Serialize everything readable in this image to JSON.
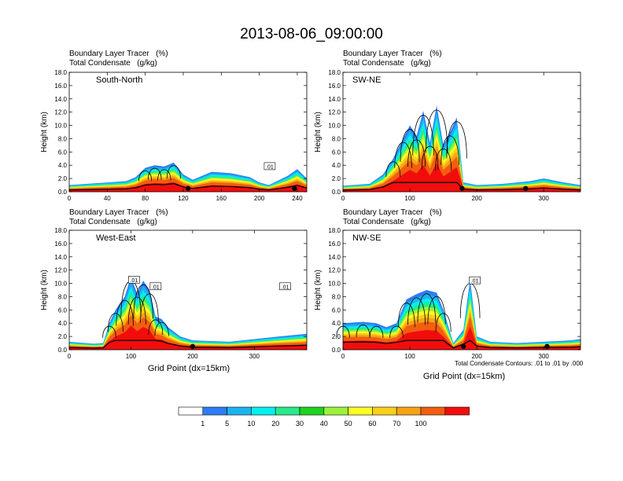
{
  "title": "2013-08-06_09:00:00",
  "panel_subtitle_left": "Boundary Layer Tracer",
  "panel_subtitle_left_unit": "(%)",
  "panel_subtitle_left2": "Total Condensate",
  "panel_subtitle_left2_unit": "(g/kg)",
  "x_label": "Grid Point (dx=15km)",
  "y_label": "Height (km)",
  "contour_note": "Total Condensate Contours: .01 to .01 by .000",
  "contour_label": ".01",
  "colors": {
    "levels": [
      "#ffffff",
      "#2e7df6",
      "#1ab4f0",
      "#00f0f0",
      "#27ea8c",
      "#20d31f",
      "#9af33a",
      "#fdfc25",
      "#f9cf1b",
      "#f7a314",
      "#f25d10",
      "#f20d0d"
    ],
    "contour": "#000000"
  },
  "colorbar_labels": [
    "1",
    "5",
    "10",
    "20",
    "30",
    "40",
    "50",
    "60",
    "70",
    "100"
  ],
  "chart_data": [
    {
      "type": "heatmap",
      "name": "South-North",
      "title": "South-North",
      "xlabel": "",
      "ylabel": "Height (km)",
      "xlim": [
        0,
        250
      ],
      "ylim": [
        0,
        18
      ],
      "xticks": [
        0,
        40,
        80,
        120,
        160,
        200,
        240
      ],
      "yticks": [
        0.0,
        2.0,
        4.0,
        6.0,
        8.0,
        10.0,
        12.0,
        14.0,
        16.0,
        18.0
      ],
      "contour_labels": [
        {
          "x": 211,
          "y": 3.8,
          "text": ".01"
        }
      ],
      "tracer_profile_x": [
        0,
        30,
        60,
        70,
        80,
        90,
        100,
        110,
        120,
        130,
        150,
        170,
        190,
        200,
        210,
        230,
        240,
        250
      ],
      "tracer_profile_top_km": [
        1.0,
        1.3,
        1.6,
        2.2,
        3.6,
        4.0,
        3.8,
        4.4,
        2.6,
        1.8,
        3.0,
        2.8,
        2.2,
        1.4,
        1.0,
        2.4,
        3.4,
        2.0
      ],
      "marker_x": [
        125,
        237
      ]
    },
    {
      "type": "heatmap",
      "name": "SW-NE",
      "title": "SW-NE",
      "xlabel": "",
      "ylabel": "Height (km)",
      "xlim": [
        0,
        355
      ],
      "ylim": [
        0,
        18
      ],
      "xticks": [
        0,
        100,
        200,
        300
      ],
      "yticks": [
        0.0,
        2.0,
        4.0,
        6.0,
        8.0,
        10.0,
        12.0,
        14.0,
        16.0,
        18.0
      ],
      "contour_labels": [],
      "tracer_profile_x": [
        0,
        40,
        60,
        75,
        90,
        100,
        110,
        120,
        130,
        140,
        150,
        160,
        170,
        180,
        200,
        240,
        280,
        300,
        330,
        355
      ],
      "tracer_profile_top_km": [
        0.9,
        1.2,
        2.6,
        5.0,
        8.0,
        10.0,
        8.4,
        12.2,
        7.4,
        13.0,
        7.0,
        9.0,
        11.2,
        1.4,
        1.0,
        1.2,
        1.6,
        2.0,
        1.4,
        1.0
      ],
      "marker_x": [
        178,
        273
      ]
    },
    {
      "type": "heatmap",
      "name": "West-East",
      "title": "West-East",
      "xlabel": "Grid Point (dx=15km)",
      "ylabel": "Height (km)",
      "xlim": [
        0,
        385
      ],
      "ylim": [
        0,
        18
      ],
      "xticks": [
        0,
        100,
        200,
        300
      ],
      "yticks": [
        0.0,
        2.0,
        4.0,
        6.0,
        8.0,
        10.0,
        12.0,
        14.0,
        16.0,
        18.0
      ],
      "contour_labels": [
        {
          "x": 105,
          "y": 10.5,
          "text": ".01"
        },
        {
          "x": 140,
          "y": 9.5,
          "text": ".01"
        },
        {
          "x": 350,
          "y": 9.5,
          "text": ".01"
        }
      ],
      "tracer_profile_x": [
        0,
        40,
        55,
        65,
        75,
        90,
        100,
        110,
        120,
        130,
        140,
        150,
        160,
        180,
        200,
        260,
        300,
        340,
        385
      ],
      "tracer_profile_top_km": [
        1.2,
        0.9,
        1.0,
        4.0,
        6.0,
        8.0,
        11.0,
        8.5,
        10.4,
        9.0,
        5.0,
        4.6,
        3.4,
        2.0,
        1.4,
        1.2,
        1.6,
        2.0,
        2.4
      ],
      "marker_x": [
        200
      ]
    },
    {
      "type": "heatmap",
      "name": "NW-SE",
      "title": "NW-SE",
      "xlabel": "Grid Point (dx=15km)",
      "ylabel": "Height (km)",
      "xlim": [
        0,
        355
      ],
      "ylim": [
        0,
        18
      ],
      "xticks": [
        0,
        100,
        200,
        300
      ],
      "yticks": [
        0.0,
        2.0,
        4.0,
        6.0,
        8.0,
        10.0,
        12.0,
        14.0,
        16.0,
        18.0
      ],
      "contour_labels": [
        {
          "x": 197,
          "y": 10.4,
          "text": ".01"
        }
      ],
      "tracer_profile_x": [
        0,
        30,
        50,
        65,
        80,
        95,
        110,
        125,
        140,
        150,
        165,
        180,
        190,
        200,
        220,
        260,
        300,
        340,
        355
      ],
      "tracer_profile_top_km": [
        4.0,
        4.2,
        4.0,
        3.4,
        4.0,
        7.6,
        8.4,
        9.0,
        8.6,
        6.0,
        1.0,
        3.0,
        10.6,
        2.0,
        1.2,
        1.0,
        1.2,
        1.4,
        1.6
      ],
      "marker_x": [
        180,
        305
      ]
    }
  ]
}
